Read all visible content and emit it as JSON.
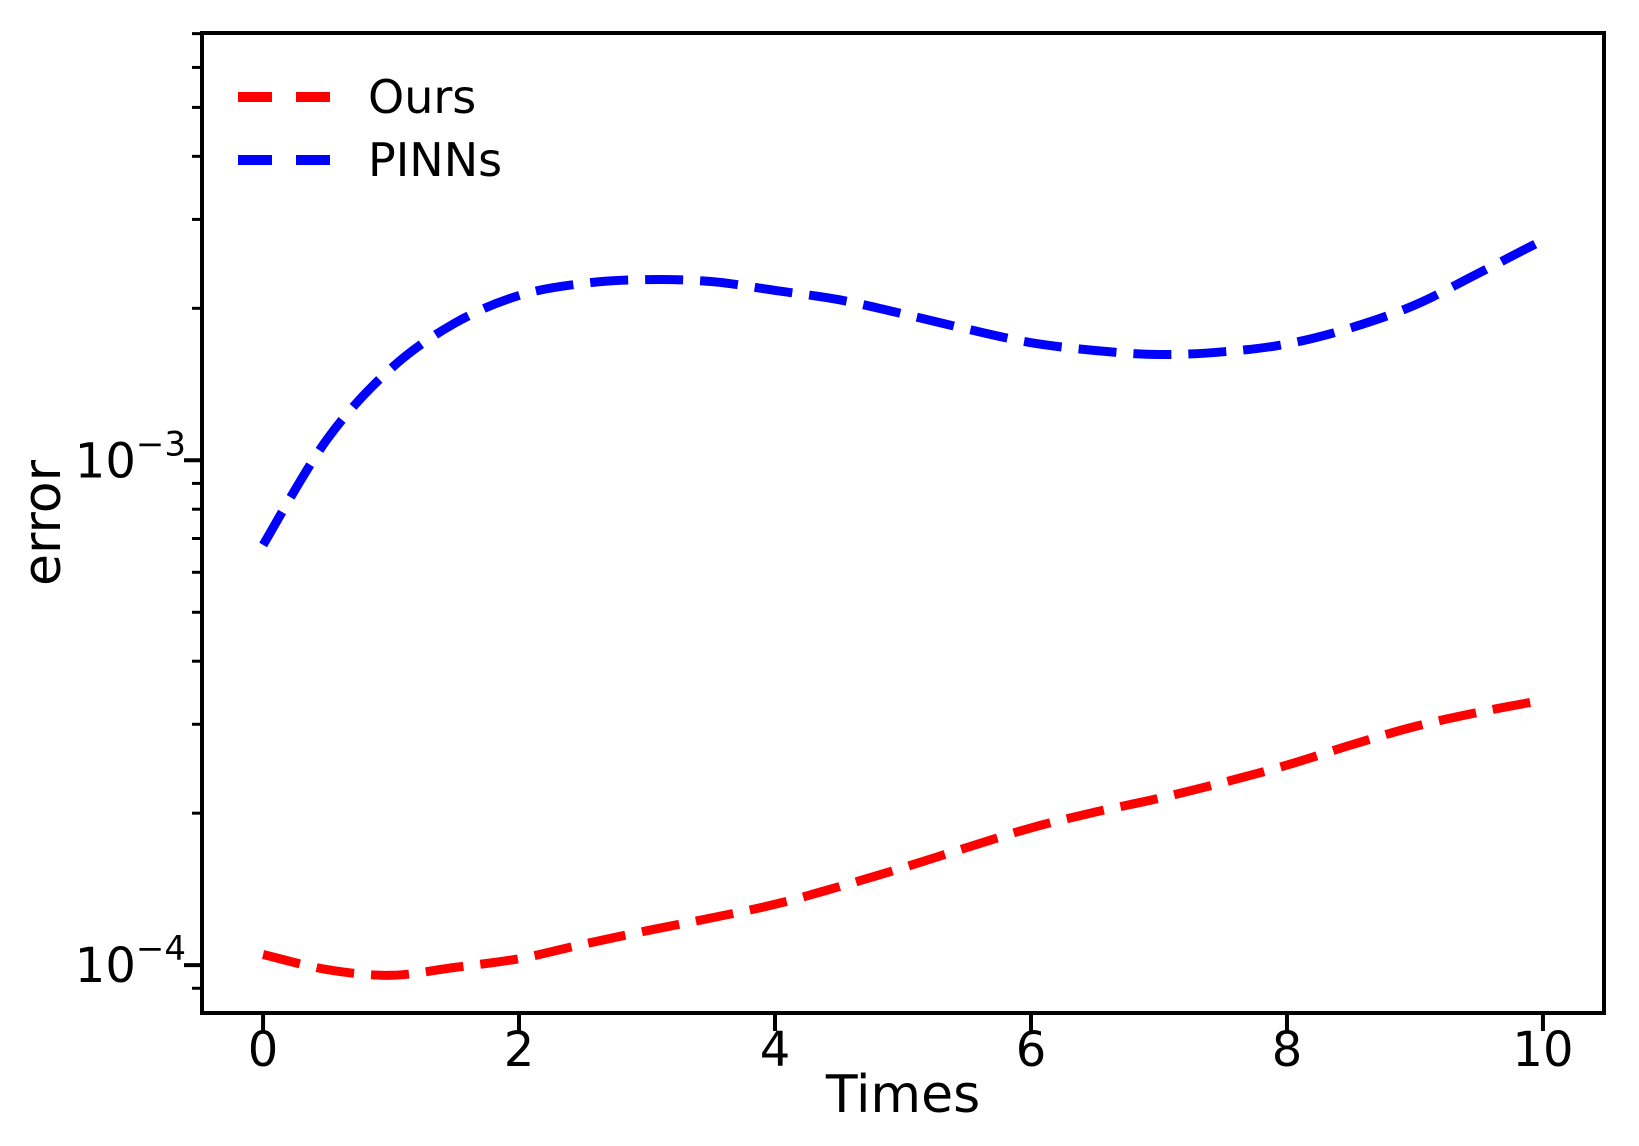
{
  "figure": {
    "background": "#ffffff"
  },
  "chart_data": {
    "type": "line",
    "title": "",
    "xlabel": "Times",
    "ylabel": "error",
    "xscale": "linear",
    "yscale": "log",
    "xlim": [
      -0.477,
      10.477
    ],
    "ylim": [
      8.04e-05,
      0.00702
    ],
    "xticks": [
      0,
      2,
      4,
      6,
      8,
      10
    ],
    "yticks": [
      {
        "value": 0.001,
        "base": "10",
        "exp": "−3"
      },
      {
        "value": 0.0001,
        "base": "10",
        "exp": "−4"
      }
    ],
    "grid": false,
    "x": [
      0,
      0.5,
      1,
      1.5,
      2,
      2.5,
      3,
      3.5,
      4,
      4.5,
      5,
      5.5,
      6,
      6.5,
      7,
      7.5,
      8,
      8.5,
      9,
      9.5,
      10
    ],
    "series": [
      {
        "name": "Ours",
        "color": "#ff0000",
        "style": "dashed",
        "values": [
          0.000105,
          9.8e-05,
          9.55e-05,
          9.9e-05,
          0.000103,
          0.00011,
          0.000117,
          0.000124,
          0.000132,
          0.000143,
          0.000156,
          0.000171,
          0.000187,
          0.000201,
          0.000214,
          0.00023,
          0.000249,
          0.000273,
          0.000297,
          0.000317,
          0.000335
        ]
      },
      {
        "name": "PINNs",
        "color": "#0000ff",
        "style": "dashed",
        "values": [
          0.00068,
          0.0011,
          0.00152,
          0.00187,
          0.00212,
          0.00224,
          0.00228,
          0.00226,
          0.00217,
          0.00208,
          0.00195,
          0.00182,
          0.00171,
          0.00165,
          0.00162,
          0.00164,
          0.0017,
          0.00183,
          0.00203,
          0.00235,
          0.00273
        ]
      }
    ],
    "legend": {
      "position": "upper-left",
      "entries": [
        {
          "label": "Ours",
          "color": "#ff0000"
        },
        {
          "label": "PINNs",
          "color": "#0000ff"
        }
      ]
    }
  }
}
